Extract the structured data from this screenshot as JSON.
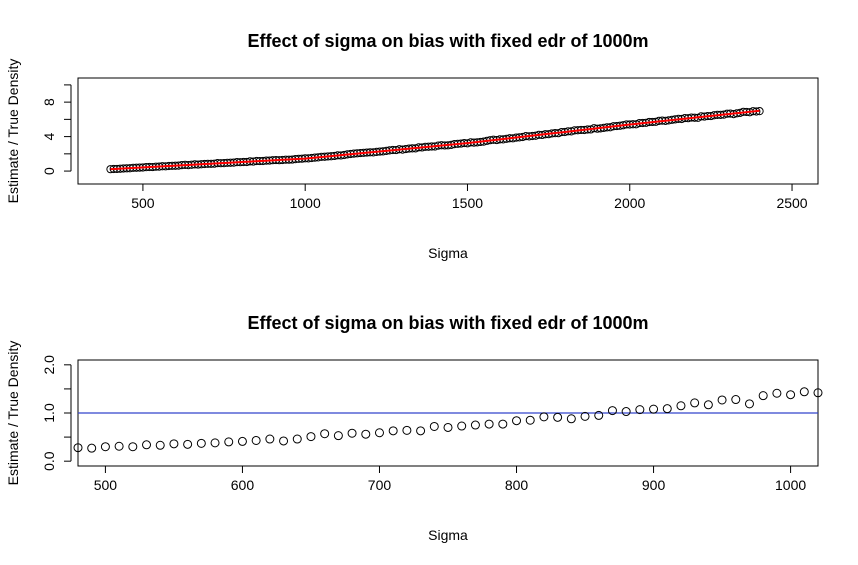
{
  "chart_data": [
    {
      "type": "scatter",
      "title": "Effect of sigma on bias with fixed edr of 1000m",
      "xlabel": "Sigma",
      "ylabel": "Estimate / True Density",
      "xlim": [
        300,
        2580
      ],
      "ylim": [
        -1.5,
        10.8
      ],
      "xticks": [
        500,
        1000,
        1500,
        2000,
        2500
      ],
      "yticks": [
        0,
        4,
        8
      ],
      "yticks_minor": [
        0,
        2,
        4,
        6,
        8,
        10
      ],
      "grid": false,
      "point_style": "open circles",
      "fit_line": {
        "color": "#ff0000",
        "from_x": 400,
        "to_x": 2400
      },
      "x_start": 400,
      "x_end": 2400,
      "x_step": 10,
      "y_curve": {
        "type": "quadratic-knots",
        "x": [
          400,
          1000,
          1500,
          2000,
          2400
        ],
        "y": [
          0.22,
          1.45,
          3.25,
          5.4,
          7.0
        ]
      }
    },
    {
      "type": "scatter",
      "title": "Effect of sigma on bias with fixed edr of 1000m",
      "xlabel": "Sigma",
      "ylabel": "Estimate / True Density",
      "xlim": [
        480,
        1020
      ],
      "ylim": [
        -0.1,
        2.1
      ],
      "xticks": [
        500,
        600,
        700,
        800,
        900,
        1000
      ],
      "yticks": [
        0.0,
        1.0,
        2.0
      ],
      "ytick_labels": [
        "0.0",
        "1.0",
        "2.0"
      ],
      "yticks_minor": [
        0.0,
        0.5,
        1.0,
        1.5,
        2.0
      ],
      "grid": false,
      "point_style": "open circles",
      "reference_line": {
        "y": 1.0,
        "color": "#3344cc"
      },
      "x": [
        480,
        490,
        500,
        510,
        520,
        530,
        540,
        550,
        560,
        570,
        580,
        590,
        600,
        610,
        620,
        630,
        640,
        650,
        660,
        670,
        680,
        690,
        700,
        710,
        720,
        730,
        740,
        750,
        760,
        770,
        780,
        790,
        800,
        810,
        820,
        830,
        840,
        850,
        860,
        870,
        880,
        890,
        900,
        910,
        920,
        930,
        940,
        950,
        960,
        970,
        980,
        990,
        1000,
        1010,
        1020
      ],
      "y": [
        0.28,
        0.27,
        0.3,
        0.31,
        0.3,
        0.34,
        0.33,
        0.36,
        0.35,
        0.37,
        0.38,
        0.4,
        0.41,
        0.43,
        0.46,
        0.42,
        0.46,
        0.51,
        0.57,
        0.53,
        0.58,
        0.56,
        0.59,
        0.63,
        0.64,
        0.63,
        0.72,
        0.7,
        0.73,
        0.75,
        0.77,
        0.77,
        0.84,
        0.85,
        0.92,
        0.91,
        0.88,
        0.93,
        0.95,
        1.05,
        1.03,
        1.07,
        1.08,
        1.09,
        1.15,
        1.21,
        1.17,
        1.27,
        1.28,
        1.19,
        1.36,
        1.41,
        1.38,
        1.44,
        1.42
      ]
    }
  ]
}
